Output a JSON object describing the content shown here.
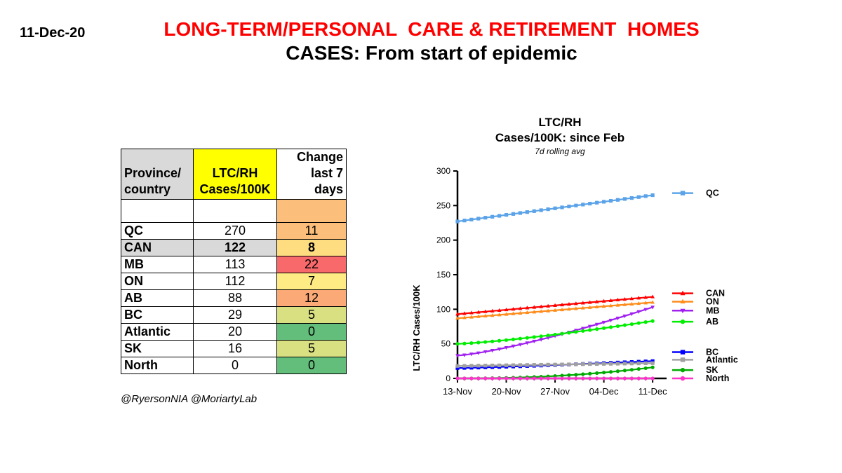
{
  "header": {
    "date": "11-Dec-20",
    "title": "LONG-TERM/PERSONAL  CARE & RETIREMENT  HOMES",
    "subtitle": "CASES: From start of epidemic"
  },
  "table": {
    "headers": {
      "col1_line1": "Province/",
      "col1_line2": "country",
      "col2_line1": "LTC/RH",
      "col2_line2": "Cases/100K",
      "col3_line1": "Change",
      "col3_line2": "last 7 days"
    },
    "rows": [
      {
        "name": "QC",
        "cases": "270",
        "change": "11",
        "color": "#fcbf7b",
        "name_bg": "#ffffff",
        "bold": false
      },
      {
        "name": "CAN",
        "cases": "122",
        "change": "8",
        "color": "#fedd81",
        "name_bg": "#d9d9d9",
        "bold": true
      },
      {
        "name": "MB",
        "cases": "113",
        "change": "22",
        "color": "#f8696b",
        "name_bg": "#ffffff",
        "bold": false
      },
      {
        "name": "ON",
        "cases": "112",
        "change": "7",
        "color": "#ffeb84",
        "name_bg": "#ffffff",
        "bold": false
      },
      {
        "name": "AB",
        "cases": "88",
        "change": "12",
        "color": "#fbaa77",
        "name_bg": "#ffffff",
        "bold": false
      },
      {
        "name": "BC",
        "cases": "29",
        "change": "5",
        "color": "#d9e082",
        "name_bg": "#ffffff",
        "bold": false
      },
      {
        "name": "Atlantic",
        "cases": "20",
        "change": "0",
        "color": "#63be7b",
        "name_bg": "#ffffff",
        "bold": false
      },
      {
        "name": "SK",
        "cases": "16",
        "change": "5",
        "color": "#d9e082",
        "name_bg": "#ffffff",
        "bold": false
      },
      {
        "name": "North",
        "cases": "0",
        "change": "0",
        "color": "#63be7b",
        "name_bg": "#ffffff",
        "bold": false
      }
    ]
  },
  "credit": "@RyersonNIA @MoriartyLab",
  "chart_data": {
    "type": "line",
    "title": "LTC/RH",
    "subtitle": "Cases/100K: since Feb",
    "note": "7d rolling avg",
    "ylabel": "LTC/RH Cases/100K",
    "xlabel": "",
    "ylim": [
      0,
      300
    ],
    "yticks": [
      0,
      50,
      100,
      150,
      200,
      250,
      300
    ],
    "xlim": [
      0,
      30
    ],
    "xticks": [
      {
        "pos": 0,
        "label": "13-Nov"
      },
      {
        "pos": 7,
        "label": "20-Nov"
      },
      {
        "pos": 14,
        "label": "27-Nov"
      },
      {
        "pos": 21,
        "label": "04-Dec"
      },
      {
        "pos": 28,
        "label": "11-Dec"
      }
    ],
    "series": [
      {
        "name": "QC",
        "color": "#5ba3e8",
        "marker": "square",
        "start": 227,
        "end": 265,
        "legend_value": 268,
        "curve": 1.0
      },
      {
        "name": "CAN",
        "color": "#ff0000",
        "marker": "triangle-up",
        "start": 93,
        "end": 118,
        "legend_value": 123,
        "curve": 1.0
      },
      {
        "name": "ON",
        "color": "#ff8c1a",
        "marker": "triangle-up",
        "start": 87,
        "end": 110,
        "legend_value": 111,
        "curve": 1.0
      },
      {
        "name": "MB",
        "color": "#a020f0",
        "marker": "triangle-down",
        "start": 33,
        "end": 103,
        "legend_value": 98,
        "curve": 1.3
      },
      {
        "name": "AB",
        "color": "#00ee00",
        "marker": "circle",
        "start": 50,
        "end": 83,
        "legend_value": 82,
        "curve": 1.3
      },
      {
        "name": "BC",
        "color": "#0000ff",
        "marker": "square",
        "start": 15,
        "end": 25,
        "legend_value": 38,
        "curve": 1.2
      },
      {
        "name": "Atlantic",
        "color": "#a0a0a0",
        "marker": "square",
        "start": 18,
        "end": 22,
        "legend_value": 27,
        "curve": 1.0
      },
      {
        "name": "SK",
        "color": "#00aa00",
        "marker": "circle",
        "start": 0,
        "end": 16,
        "legend_value": 12,
        "curve": 2.2
      },
      {
        "name": "North",
        "color": "#ff33cc",
        "marker": "circle",
        "start": 0,
        "end": 0,
        "legend_value": 0,
        "curve": 1.0
      }
    ]
  }
}
